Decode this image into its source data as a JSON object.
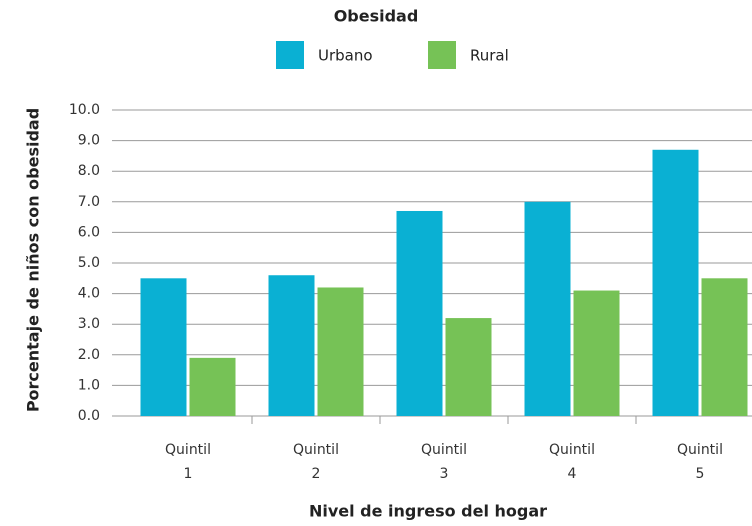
{
  "chart_data": {
    "type": "bar",
    "legend_title": "Obesidad",
    "x_label": "Nivel de ingreso del hogar",
    "y_label": "Porcentaje de niños con obesidad",
    "categories": [
      "Quintil 1",
      "Quintil 2",
      "Quintil 3",
      "Quintil 4",
      "Quintil 5"
    ],
    "series": [
      {
        "name": "Urbano",
        "color": "#0ab0d3",
        "values": [
          4.5,
          4.6,
          6.7,
          7.0,
          8.7
        ]
      },
      {
        "name": "Rural",
        "color": "#76c256",
        "values": [
          1.9,
          4.2,
          3.2,
          4.1,
          4.5
        ]
      }
    ],
    "ylim": [
      0,
      10
    ],
    "yticks": [
      {
        "value": 0,
        "label": "0.0"
      },
      {
        "value": 1,
        "label": "1.0"
      },
      {
        "value": 2,
        "label": "2.0"
      },
      {
        "value": 3,
        "label": "3.0"
      },
      {
        "value": 4,
        "label": "4.0"
      },
      {
        "value": 5,
        "label": "5.0"
      },
      {
        "value": 6,
        "label": "6.0"
      },
      {
        "value": 7,
        "label": "7.0"
      },
      {
        "value": 8,
        "label": "8.0"
      },
      {
        "value": 9,
        "label": "9.0"
      },
      {
        "value": 10,
        "label": "10.0"
      }
    ],
    "grid": true,
    "legend_position": "top"
  }
}
